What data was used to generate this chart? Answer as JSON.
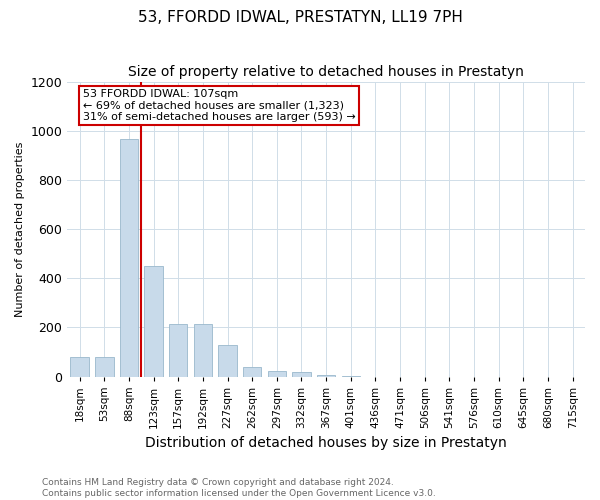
{
  "title": "53, FFORDD IDWAL, PRESTATYN, LL19 7PH",
  "subtitle": "Size of property relative to detached houses in Prestatyn",
  "xlabel": "Distribution of detached houses by size in Prestatyn",
  "ylabel": "Number of detached properties",
  "footer_line1": "Contains HM Land Registry data © Crown copyright and database right 2024.",
  "footer_line2": "Contains public sector information licensed under the Open Government Licence v3.0.",
  "annotation_line1": "53 FFORDD IDWAL: 107sqm",
  "annotation_line2": "← 69% of detached houses are smaller (1,323)",
  "annotation_line3": "31% of semi-detached houses are larger (593) →",
  "bar_color": "#c8daea",
  "bar_edge_color": "#9ab8cc",
  "red_line_color": "#cc0000",
  "annotation_box_edgecolor": "#cc0000",
  "categories": [
    "18sqm",
    "53sqm",
    "88sqm",
    "123sqm",
    "157sqm",
    "192sqm",
    "227sqm",
    "262sqm",
    "297sqm",
    "332sqm",
    "367sqm",
    "401sqm",
    "436sqm",
    "471sqm",
    "506sqm",
    "541sqm",
    "576sqm",
    "610sqm",
    "645sqm",
    "680sqm",
    "715sqm"
  ],
  "values": [
    78,
    78,
    968,
    450,
    213,
    213,
    130,
    40,
    22,
    20,
    8,
    4,
    0,
    0,
    0,
    0,
    0,
    0,
    0,
    0,
    0
  ],
  "red_line_x": 2.5,
  "bar_width": 0.75,
  "ylim": [
    0,
    1200
  ],
  "yticks": [
    0,
    200,
    400,
    600,
    800,
    1000,
    1200
  ],
  "title_fontsize": 11,
  "subtitle_fontsize": 10,
  "ylabel_fontsize": 8,
  "xlabel_fontsize": 10,
  "xtick_fontsize": 7.5,
  "ytick_fontsize": 9,
  "annotation_fontsize": 8,
  "footer_fontsize": 6.5
}
